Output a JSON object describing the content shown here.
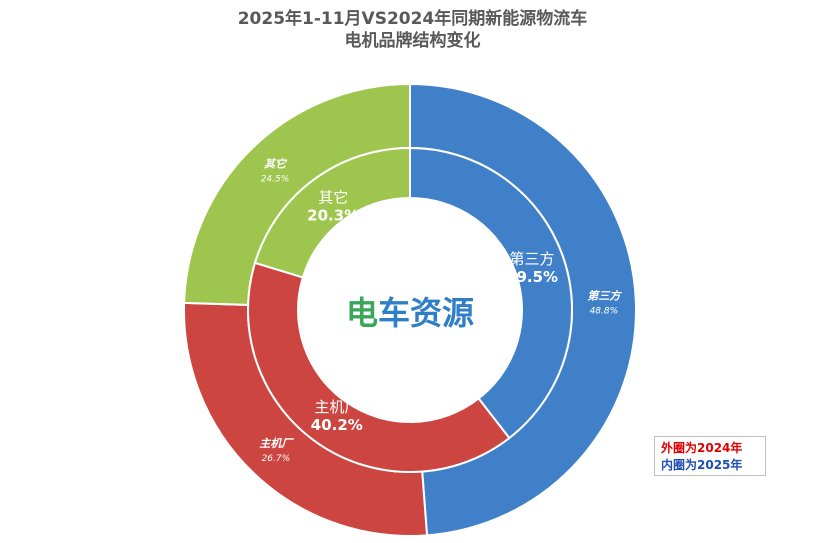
{
  "chart_data": {
    "type": "pie",
    "title": "2025年1-11月VS2024年同期新能源物流车",
    "subtitle": "电机品牌结构变化",
    "series": [
      {
        "name": "外圈为2024年",
        "categories": [
          "第三方",
          "主机厂",
          "其它"
        ],
        "values": [
          48.8,
          26.7,
          24.5
        ],
        "labels": [
          "48.8%",
          "26.7%",
          "24.5%"
        ]
      },
      {
        "name": "内圈为2025年",
        "categories": [
          "第三方",
          "主机厂",
          "其它"
        ],
        "values": [
          39.5,
          40.2,
          20.3
        ],
        "labels": [
          "39.5%",
          "40.2%",
          "20.3%"
        ]
      }
    ],
    "colors": [
      "#4080c8",
      "#cc4540",
      "#9ec54e"
    ],
    "legend": "bottom-right"
  },
  "logo": {
    "text": "电车资源",
    "colors": [
      "#2f7fc6",
      "#3aa65a"
    ]
  }
}
